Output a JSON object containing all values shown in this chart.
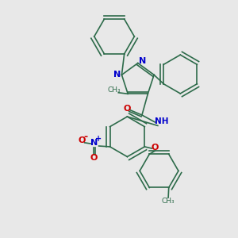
{
  "background_color": "#e8e8e8",
  "bond_color": "#2d6b4a",
  "nitrogen_color": "#0000cc",
  "oxygen_color": "#cc0000",
  "figsize": [
    3.0,
    3.0
  ],
  "dpi": 100,
  "xlim": [
    0,
    10
  ],
  "ylim": [
    0,
    10
  ]
}
